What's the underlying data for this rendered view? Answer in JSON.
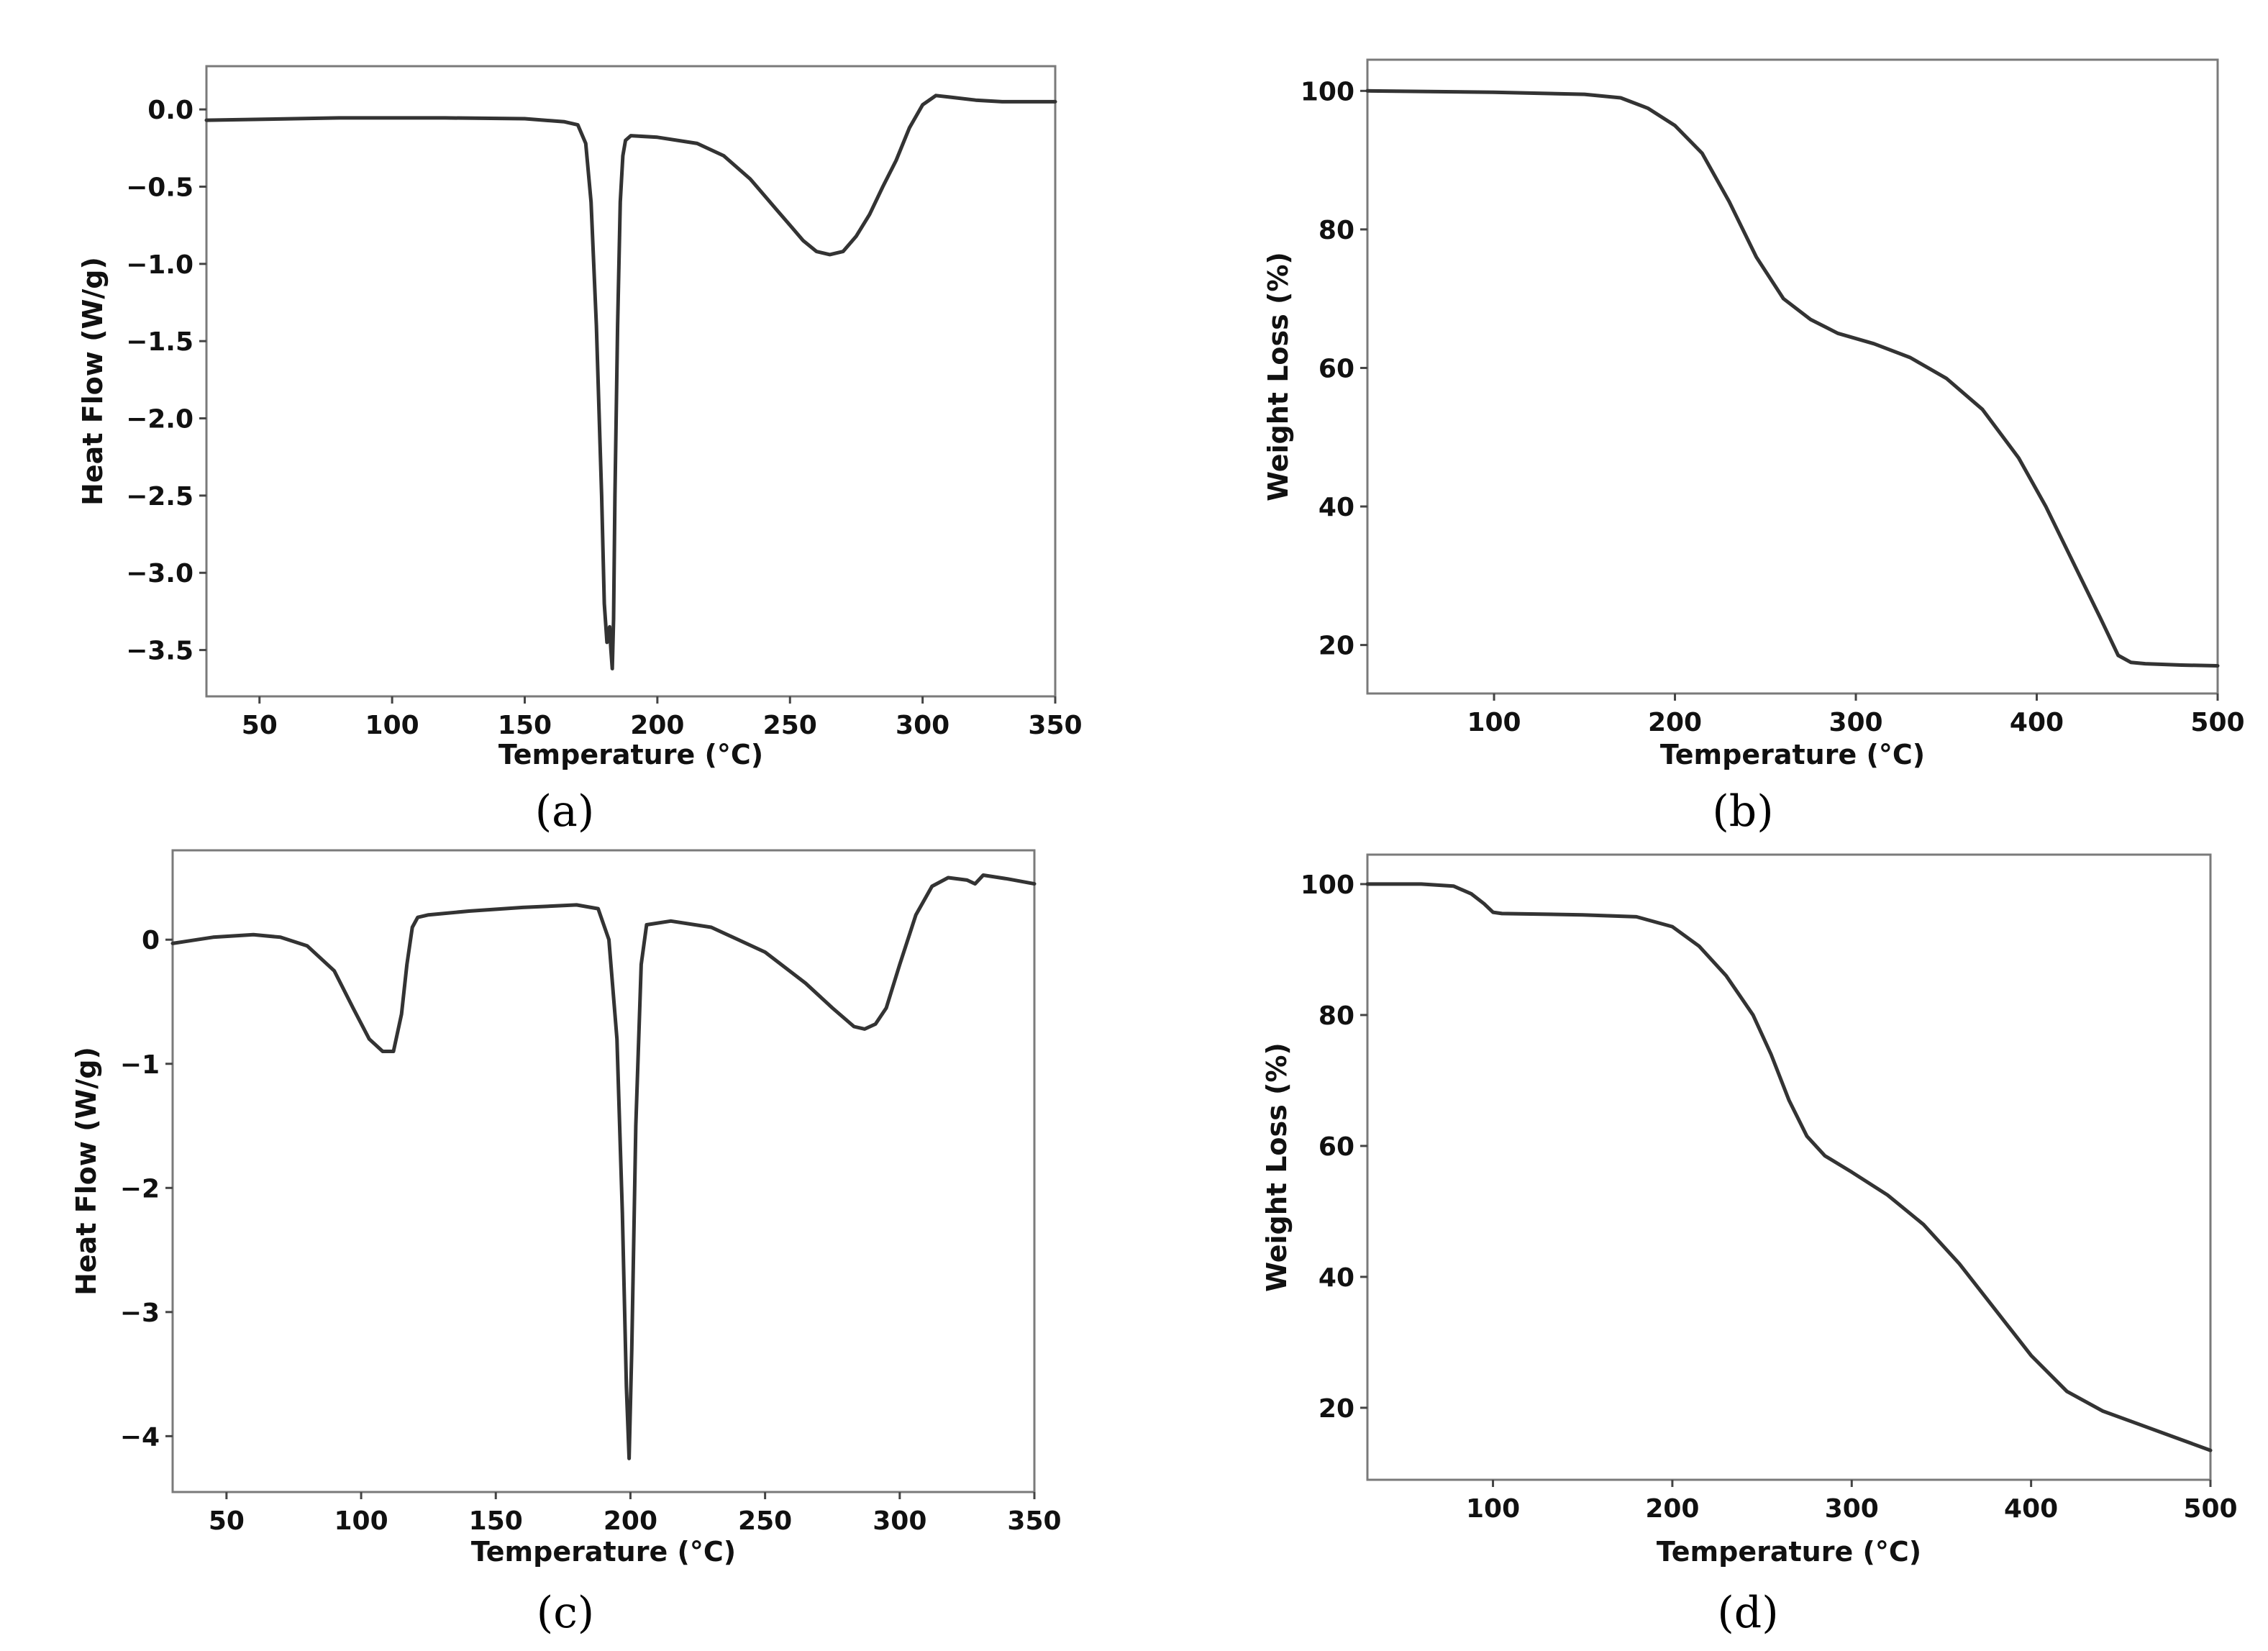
{
  "chart_data": [
    {
      "type": "line",
      "panel_label": "(a)",
      "xlabel": "Temperature (°C)",
      "ylabel": "Heat Flow (W/g)",
      "xlim": [
        30,
        350
      ],
      "ylim": [
        -3.8,
        0.28
      ],
      "xticks": [
        50,
        100,
        150,
        200,
        250,
        300,
        350
      ],
      "yticks": [
        0.0,
        -0.5,
        -1.0,
        -1.5,
        -2.0,
        -2.5,
        -3.0,
        -3.5
      ],
      "xtick_labels": [
        "50",
        "100",
        "150",
        "200",
        "250",
        "300",
        "350"
      ],
      "ytick_labels": [
        "0.0",
        "−0.5",
        "−1.0",
        "−1.5",
        "−2.0",
        "−2.5",
        "−3.0",
        "−3.5"
      ],
      "grid": false,
      "color": "#333333",
      "series": [
        {
          "x": [
            30,
            80,
            120,
            150,
            165,
            170,
            173,
            175,
            177,
            179,
            180,
            181,
            182,
            182.5,
            183,
            183.5,
            184,
            185,
            186,
            187,
            188,
            190,
            200,
            215,
            225,
            235,
            245,
            250,
            255,
            260,
            265,
            270,
            275,
            280,
            285,
            290,
            295,
            300,
            305,
            310,
            320,
            330,
            350
          ],
          "y": [
            -0.07,
            -0.055,
            -0.055,
            -0.06,
            -0.08,
            -0.1,
            -0.22,
            -0.6,
            -1.4,
            -2.5,
            -3.2,
            -3.45,
            -3.35,
            -3.5,
            -3.62,
            -3.3,
            -2.5,
            -1.4,
            -0.6,
            -0.3,
            -0.2,
            -0.17,
            -0.18,
            -0.22,
            -0.3,
            -0.45,
            -0.65,
            -0.75,
            -0.85,
            -0.92,
            -0.94,
            -0.92,
            -0.82,
            -0.68,
            -0.5,
            -0.33,
            -0.12,
            0.03,
            0.09,
            0.08,
            0.06,
            0.05,
            0.05
          ]
        }
      ]
    },
    {
      "type": "line",
      "panel_label": "(b)",
      "xlabel": "Temperature (°C)",
      "ylabel": "Weight Loss (%)",
      "xlim": [
        30,
        500
      ],
      "ylim": [
        13,
        104.5
      ],
      "xticks": [
        100,
        200,
        300,
        400,
        500
      ],
      "yticks": [
        20,
        40,
        60,
        80,
        100
      ],
      "xtick_labels": [
        "100",
        "200",
        "300",
        "400",
        "500"
      ],
      "ytick_labels": [
        "20",
        "40",
        "60",
        "80",
        "100"
      ],
      "grid": false,
      "color": "#333333",
      "series": [
        {
          "x": [
            30,
            100,
            150,
            170,
            185,
            200,
            215,
            230,
            245,
            260,
            275,
            290,
            310,
            330,
            350,
            370,
            390,
            405,
            420,
            435,
            445,
            452,
            460,
            480,
            500
          ],
          "y": [
            100,
            99.8,
            99.5,
            99,
            97.5,
            95,
            91,
            84,
            76,
            70,
            67,
            65,
            63.5,
            61.5,
            58.5,
            54,
            47,
            40,
            32,
            24,
            18.5,
            17.5,
            17.3,
            17.1,
            17
          ]
        }
      ]
    },
    {
      "type": "line",
      "panel_label": "(c)",
      "xlabel": "Temperature (°C)",
      "ylabel": "Heat Flow (W/g)",
      "xlim": [
        30,
        350
      ],
      "ylim": [
        -4.45,
        0.72
      ],
      "xticks": [
        50,
        100,
        150,
        200,
        250,
        300,
        350
      ],
      "yticks": [
        0,
        -1,
        -2,
        -3,
        -4
      ],
      "xtick_labels": [
        "50",
        "100",
        "150",
        "200",
        "250",
        "300",
        "350"
      ],
      "ytick_labels": [
        "0",
        "−1",
        "−2",
        "−3",
        "−4"
      ],
      "grid": false,
      "color": "#333333",
      "series": [
        {
          "x": [
            30,
            45,
            60,
            70,
            80,
            90,
            97,
            103,
            108,
            112,
            115,
            117,
            119,
            121,
            125,
            140,
            160,
            180,
            188,
            192,
            195,
            197,
            198.5,
            199.5,
            200.5,
            202,
            204,
            206,
            215,
            230,
            250,
            265,
            275,
            283,
            287,
            291,
            295,
            300,
            306,
            312,
            318,
            325,
            328,
            331,
            340,
            350
          ],
          "y": [
            -0.03,
            0.02,
            0.04,
            0.02,
            -0.05,
            -0.25,
            -0.55,
            -0.8,
            -0.9,
            -0.9,
            -0.6,
            -0.2,
            0.1,
            0.18,
            0.2,
            0.23,
            0.26,
            0.28,
            0.25,
            0.0,
            -0.8,
            -2.2,
            -3.6,
            -4.18,
            -3.3,
            -1.5,
            -0.2,
            0.12,
            0.15,
            0.1,
            -0.1,
            -0.35,
            -0.55,
            -0.7,
            -0.72,
            -0.68,
            -0.55,
            -0.2,
            0.2,
            0.43,
            0.5,
            0.48,
            0.45,
            0.52,
            0.49,
            0.45
          ]
        }
      ]
    },
    {
      "type": "line",
      "panel_label": "(d)",
      "xlabel": "Temperature (°C)",
      "ylabel": "Weight Loss (%)",
      "xlim": [
        30,
        500
      ],
      "ylim": [
        9,
        104.5
      ],
      "xticks": [
        100,
        200,
        300,
        400,
        500
      ],
      "yticks": [
        20,
        40,
        60,
        80,
        100
      ],
      "xtick_labels": [
        "100",
        "200",
        "300",
        "400",
        "500"
      ],
      "ytick_labels": [
        "20",
        "40",
        "60",
        "80",
        "100"
      ],
      "grid": false,
      "color": "#333333",
      "series": [
        {
          "x": [
            30,
            60,
            78,
            88,
            95,
            100,
            105,
            150,
            180,
            200,
            215,
            230,
            245,
            255,
            265,
            275,
            285,
            300,
            320,
            340,
            360,
            380,
            400,
            420,
            440,
            460,
            480,
            500
          ],
          "y": [
            100,
            100,
            99.7,
            98.5,
            97,
            95.7,
            95.5,
            95.3,
            95,
            93.5,
            90.5,
            86,
            80,
            74,
            67,
            61.5,
            58.5,
            56,
            52.5,
            48,
            42,
            35,
            28,
            22.5,
            19.5,
            17.5,
            15.5,
            13.5
          ]
        }
      ]
    }
  ]
}
